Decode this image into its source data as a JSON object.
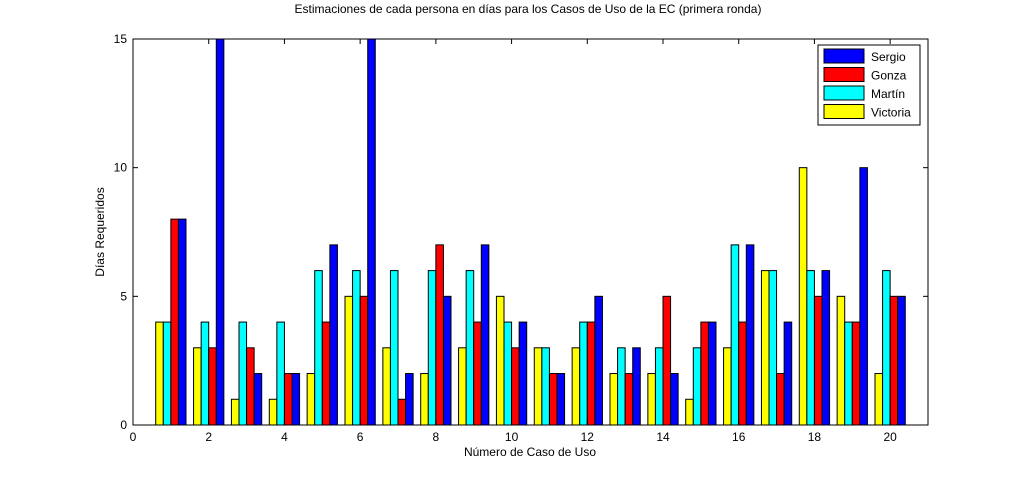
{
  "chart_data": {
    "type": "bar",
    "title": "Estimaciones de cada persona en días para los Casos de Uso de la EC (primera ronda)",
    "xlabel": "Número de Caso de Uso",
    "ylabel": "Días Requeridos",
    "xlim": [
      0,
      21
    ],
    "ylim": [
      0,
      15
    ],
    "xticks": [
      0,
      2,
      4,
      6,
      8,
      10,
      12,
      14,
      16,
      18,
      20
    ],
    "yticks": [
      0,
      5,
      10,
      15
    ],
    "legend_position": "top-right",
    "categories": [
      1,
      2,
      3,
      4,
      5,
      6,
      7,
      8,
      9,
      10,
      11,
      12,
      13,
      14,
      15,
      16,
      17,
      18,
      19,
      20
    ],
    "series": [
      {
        "name": "Victoria",
        "color": "#ffff00",
        "values": [
          4,
          3,
          1,
          1,
          2,
          5,
          3,
          2,
          3,
          5,
          3,
          3,
          2,
          2,
          1,
          3,
          6,
          10,
          5,
          2
        ]
      },
      {
        "name": "Martín",
        "color": "#00ffff",
        "values": [
          4,
          4,
          4,
          4,
          6,
          6,
          6,
          6,
          6,
          4,
          3,
          4,
          3,
          3,
          3,
          7,
          6,
          6,
          4,
          6
        ]
      },
      {
        "name": "Gonza",
        "color": "#ff0000",
        "values": [
          8,
          3,
          3,
          2,
          4,
          5,
          1,
          7,
          4,
          3,
          2,
          4,
          2,
          5,
          4,
          4,
          2,
          5,
          4,
          5
        ]
      },
      {
        "name": "Sergio",
        "color": "#0000ff",
        "values": [
          8,
          15,
          2,
          2,
          7,
          15,
          2,
          5,
          7,
          4,
          2,
          5,
          3,
          2,
          4,
          7,
          4,
          6,
          10,
          5
        ]
      }
    ],
    "legend_order": [
      "Sergio",
      "Gonza",
      "Martín",
      "Victoria"
    ]
  }
}
